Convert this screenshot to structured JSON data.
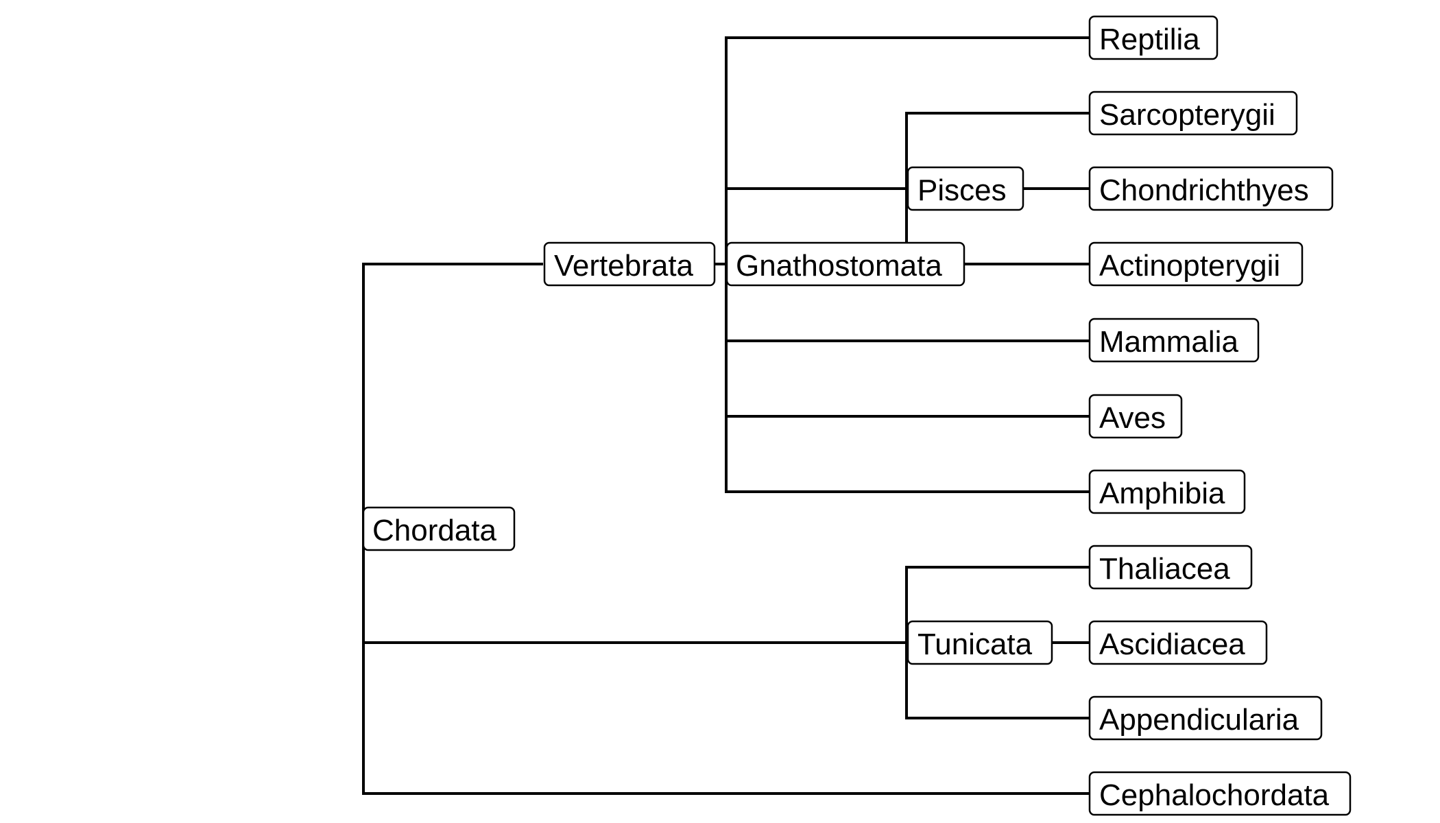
{
  "diagram": {
    "type": "tree",
    "line_color": "#000000",
    "box_fill": "#ffffff",
    "text_color": "#000000",
    "nodes": [
      {
        "id": "chordata",
        "label": "Chordata"
      },
      {
        "id": "vertebrata",
        "label": "Vertebrata"
      },
      {
        "id": "gnathostomata",
        "label": "Gnathostomata"
      },
      {
        "id": "pisces",
        "label": "Pisces"
      },
      {
        "id": "tunicata",
        "label": "Tunicata"
      },
      {
        "id": "reptilia",
        "label": "Reptilia"
      },
      {
        "id": "sarcopterygii",
        "label": "Sarcopterygii"
      },
      {
        "id": "chondrichthyes",
        "label": "Chondrichthyes"
      },
      {
        "id": "actinopterygii",
        "label": "Actinopterygii"
      },
      {
        "id": "mammalia",
        "label": "Mammalia"
      },
      {
        "id": "aves",
        "label": "Aves"
      },
      {
        "id": "amphibia",
        "label": "Amphibia"
      },
      {
        "id": "thaliacea",
        "label": "Thaliacea"
      },
      {
        "id": "ascidiacea",
        "label": "Ascidiacea"
      },
      {
        "id": "appendicularia",
        "label": "Appendicularia"
      },
      {
        "id": "cephalochordata",
        "label": "Cephalochordata"
      }
    ],
    "edges": [
      {
        "from": "chordata",
        "to": "vertebrata"
      },
      {
        "from": "chordata",
        "to": "tunicata"
      },
      {
        "from": "chordata",
        "to": "cephalochordata"
      },
      {
        "from": "vertebrata",
        "to": "gnathostomata"
      },
      {
        "from": "gnathostomata",
        "to": "reptilia"
      },
      {
        "from": "gnathostomata",
        "to": "pisces"
      },
      {
        "from": "gnathostomata",
        "to": "mammalia"
      },
      {
        "from": "gnathostomata",
        "to": "aves"
      },
      {
        "from": "gnathostomata",
        "to": "amphibia"
      },
      {
        "from": "pisces",
        "to": "sarcopterygii"
      },
      {
        "from": "pisces",
        "to": "chondrichthyes"
      },
      {
        "from": "pisces",
        "to": "actinopterygii"
      },
      {
        "from": "tunicata",
        "to": "thaliacea"
      },
      {
        "from": "tunicata",
        "to": "ascidiacea"
      },
      {
        "from": "tunicata",
        "to": "appendicularia"
      }
    ]
  }
}
